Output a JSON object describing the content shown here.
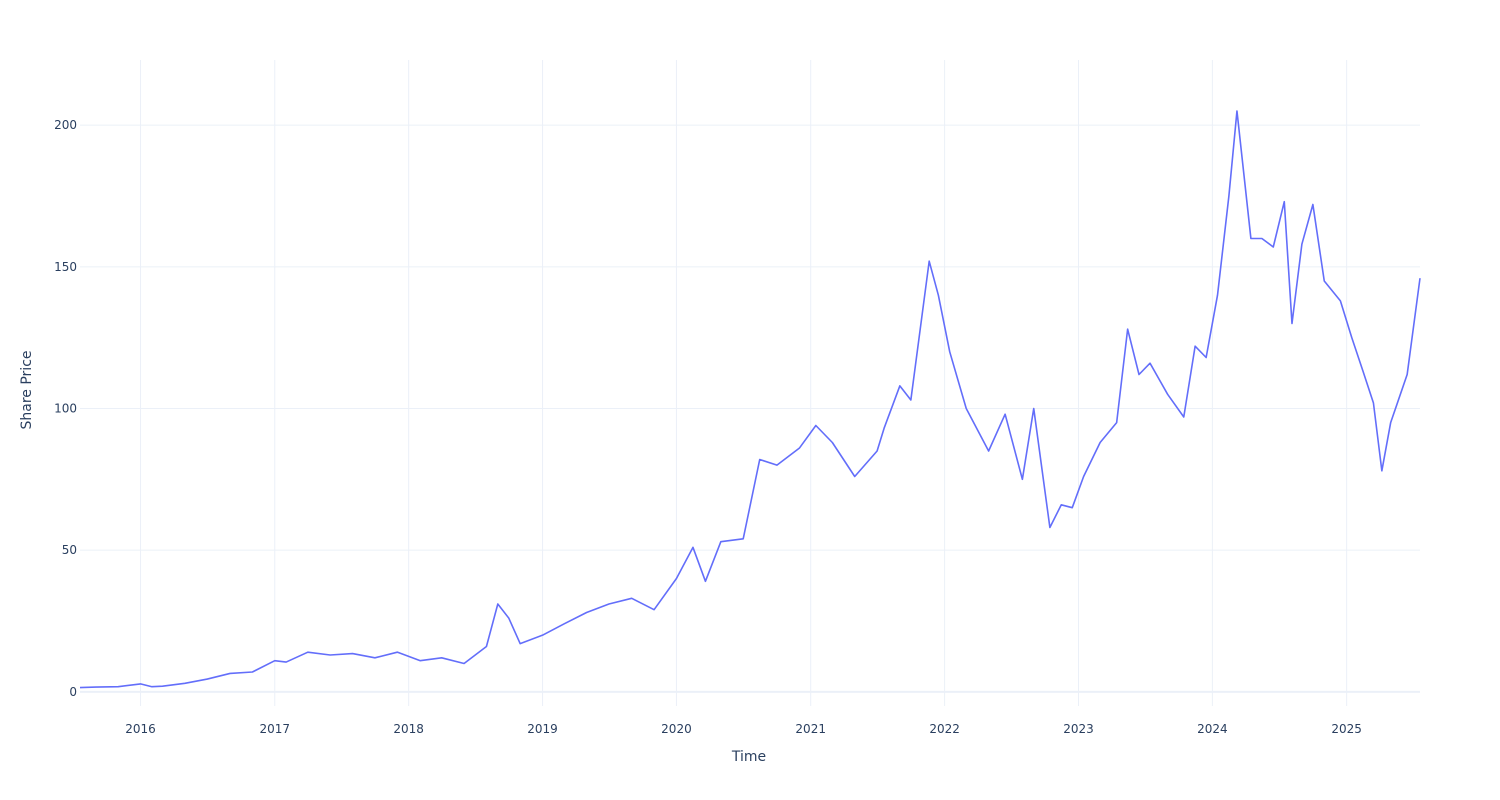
{
  "chart_data": {
    "type": "line",
    "title": "",
    "xlabel": "Time",
    "ylabel": "Share Price",
    "x_ticks": [
      "2016",
      "2017",
      "2018",
      "2019",
      "2020",
      "2021",
      "2022",
      "2023",
      "2024",
      "2025"
    ],
    "y_ticks": [
      "0",
      "50",
      "100",
      "150",
      "200"
    ],
    "xlim": [
      "2015-07-20",
      "2025-07-20"
    ],
    "ylim": [
      -5,
      223
    ],
    "grid": true,
    "legend": "none",
    "series": [
      {
        "color": "#636efa",
        "x": [
          "2015-07-20",
          "2015-09-01",
          "2015-11-01",
          "2016-01-01",
          "2016-02-01",
          "2016-03-01",
          "2016-05-01",
          "2016-07-01",
          "2016-09-01",
          "2016-11-01",
          "2017-01-01",
          "2017-02-01",
          "2017-04-01",
          "2017-06-01",
          "2017-08-01",
          "2017-10-01",
          "2017-12-01",
          "2018-02-01",
          "2018-04-01",
          "2018-06-01",
          "2018-08-01",
          "2018-09-01",
          "2018-10-01",
          "2018-11-01",
          "2019-01-01",
          "2019-03-01",
          "2019-05-01",
          "2019-07-01",
          "2019-09-01",
          "2019-11-01",
          "2020-01-01",
          "2020-02-15",
          "2020-03-20",
          "2020-05-01",
          "2020-07-01",
          "2020-08-15",
          "2020-10-01",
          "2020-12-01",
          "2021-01-15",
          "2021-03-01",
          "2021-05-01",
          "2021-07-01",
          "2021-07-20",
          "2021-09-01",
          "2021-10-01",
          "2021-11-20",
          "2021-12-15",
          "2022-01-15",
          "2022-03-01",
          "2022-05-01",
          "2022-06-15",
          "2022-08-01",
          "2022-09-01",
          "2022-10-15",
          "2022-11-15",
          "2022-12-15",
          "2023-01-15",
          "2023-03-01",
          "2023-04-15",
          "2023-05-15",
          "2023-06-15",
          "2023-07-15",
          "2023-09-01",
          "2023-10-15",
          "2023-11-15",
          "2023-12-15",
          "2024-01-15",
          "2024-02-15",
          "2024-03-08",
          "2024-04-15",
          "2024-05-15",
          "2024-06-15",
          "2024-07-15",
          "2024-08-05",
          "2024-09-01",
          "2024-10-01",
          "2024-11-01",
          "2024-12-15",
          "2025-01-15",
          "2025-02-15",
          "2025-03-15",
          "2025-04-07",
          "2025-05-01",
          "2025-06-15",
          "2025-07-20"
        ],
        "y": [
          1.5,
          1.7,
          1.8,
          2.8,
          1.8,
          2,
          3,
          4.5,
          6.5,
          7,
          11,
          10.5,
          14,
          13,
          13.5,
          12,
          14,
          11,
          12,
          10,
          16,
          31,
          26,
          17,
          20,
          24,
          28,
          31,
          33,
          29,
          40,
          51,
          39,
          53,
          54,
          82,
          80,
          86,
          94,
          88,
          76,
          85,
          93,
          108,
          103,
          152,
          140,
          120,
          100,
          85,
          98,
          75,
          100,
          58,
          66,
          65,
          76,
          88,
          95,
          128,
          112,
          116,
          105,
          97,
          122,
          118,
          140,
          175,
          205,
          160,
          160,
          157,
          173,
          130,
          158,
          172,
          145,
          138,
          125,
          113,
          102,
          78,
          95,
          112,
          146
        ]
      }
    ]
  }
}
